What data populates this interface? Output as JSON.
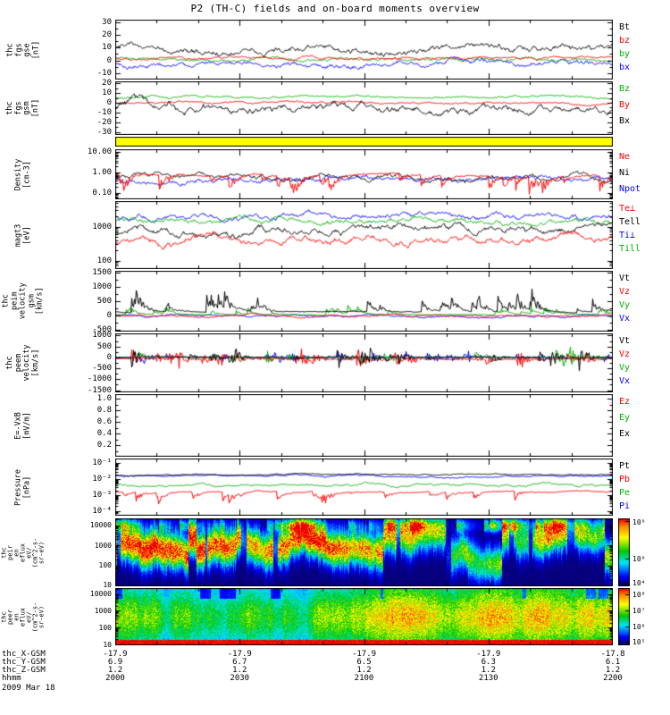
{
  "title": "P2 (TH-C) fields and on-board moments overview",
  "date_label": "2009 Mar 18",
  "colors": {
    "black": "#000000",
    "red": "#ff0000",
    "green": "#00b000",
    "blue": "#0000ff",
    "flag_yellow": "#ffff00"
  },
  "bottom_rows": [
    {
      "label": "thc_X-GSM",
      "values": [
        "-17.9",
        "-17.9",
        "-17.9",
        "-17.9",
        "-17.8"
      ]
    },
    {
      "label": "thc_Y-GSM",
      "values": [
        "6.9",
        "6.7",
        "6.5",
        "6.3",
        "6.1"
      ]
    },
    {
      "label": "thc_Z-GSM",
      "values": [
        "1.2",
        "1.2",
        "1.2",
        "1.2",
        "1.2"
      ]
    },
    {
      "label": "hhmm",
      "values": [
        "2000",
        "2030",
        "2100",
        "2130",
        "2200"
      ]
    },
    {
      "label": "2009 Mar 18",
      "values": []
    }
  ],
  "chart_data": {
    "type": "multi-panel time series and spectrograms",
    "x_axis": {
      "tick_labels": [
        "2000",
        "2030",
        "2100",
        "2130",
        "2200"
      ],
      "minor_every_minutes": 10,
      "span_minutes": 120
    },
    "panels": [
      {
        "id": "fgs_gse",
        "type": "line",
        "ylabel_lines": [
          "thc",
          "fgs",
          "gse",
          "[nT]"
        ],
        "scale": "linear",
        "yrange": [
          -15,
          32
        ],
        "yticks": [
          {
            "value": 30,
            "label": "30"
          },
          {
            "value": 20,
            "label": "20"
          },
          {
            "value": 10,
            "label": "10"
          },
          {
            "value": 0,
            "label": "0"
          },
          {
            "value": -10,
            "label": "-10"
          }
        ],
        "legend": [
          {
            "label": "Bt",
            "color": "#000000"
          },
          {
            "label": "bz",
            "color": "#ff0000"
          },
          {
            "label": "by",
            "color": "#00b000"
          },
          {
            "label": "bx",
            "color": "#0000ff"
          }
        ],
        "series": [
          {
            "name": "bx",
            "color": "#0000ff",
            "style": "smooth",
            "base": -2,
            "amp": 6,
            "seed": 101
          },
          {
            "name": "by",
            "color": "#00b000",
            "style": "smooth",
            "base": 1,
            "amp": 3,
            "seed": 102
          },
          {
            "name": "bz",
            "color": "#ff0000",
            "style": "smooth",
            "base": 2,
            "amp": 3,
            "seed": 103
          },
          {
            "name": "Bt",
            "color": "#000000",
            "style": "smooth_pos",
            "base": 9,
            "amp": 7,
            "seed": 104
          }
        ]
      },
      {
        "id": "fgs_gsm",
        "type": "line",
        "ylabel_lines": [
          "thc",
          "fgs",
          "gsm",
          "[nT]"
        ],
        "scale": "linear",
        "yrange": [
          -33,
          22
        ],
        "yticks": [
          {
            "value": 20,
            "label": "20"
          },
          {
            "value": 10,
            "label": "10"
          },
          {
            "value": 0,
            "label": "0"
          },
          {
            "value": -10,
            "label": "-10"
          },
          {
            "value": -20,
            "label": "-20"
          },
          {
            "value": -30,
            "label": "-30"
          }
        ],
        "legend": [
          {
            "label": "Bz",
            "color": "#00b000"
          },
          {
            "label": "By",
            "color": "#ff0000"
          },
          {
            "label": "Bx",
            "color": "#000000"
          }
        ],
        "series": [
          {
            "name": "By",
            "color": "#ff0000",
            "style": "smooth",
            "base": 0,
            "amp": 3,
            "seed": 201
          },
          {
            "name": "Bz",
            "color": "#00b000",
            "style": "smooth",
            "base": 6,
            "amp": 3,
            "seed": 202
          },
          {
            "name": "Bx",
            "color": "#000000",
            "style": "smooth",
            "base": -6,
            "amp": 11,
            "seed": 203
          }
        ]
      },
      {
        "id": "flag",
        "type": "flag",
        "color": "#ffff00"
      },
      {
        "id": "density",
        "type": "line",
        "ylabel_lines": [
          "Density",
          "[cm-3]"
        ],
        "scale": "log",
        "yrange_log": [
          -1.3,
          1.15
        ],
        "yticks": [
          {
            "value": 1,
            "label": "10.00"
          },
          {
            "value": 0,
            "label": "1.00"
          },
          {
            "value": -1,
            "label": "0.10"
          }
        ],
        "legend": [
          {
            "label": "Ne",
            "color": "#ff0000"
          },
          {
            "label": "Ni",
            "color": "#000000"
          },
          {
            "label": "Npot",
            "color": "#0000ff"
          }
        ],
        "series": [
          {
            "name": "Npot",
            "color": "#0000ff",
            "style": "smooth",
            "base": -0.3,
            "amp": 0.35,
            "seed": 301
          },
          {
            "name": "Ni",
            "color": "#000000",
            "style": "smooth",
            "base": -0.2,
            "amp": 0.35,
            "seed": 302
          },
          {
            "name": "Ne",
            "color": "#ff0000",
            "style": "spike_down",
            "base": -0.12,
            "amp": 1.1,
            "seed": 303
          }
        ]
      },
      {
        "id": "temps",
        "type": "line",
        "ylabel_lines": [
          "magt3",
          "[eV]"
        ],
        "scale": "log",
        "yrange_log": [
          1.75,
          3.75
        ],
        "yticks": [
          {
            "value": 3,
            "label": "1000"
          },
          {
            "value": 2,
            "label": "100"
          }
        ],
        "legend": [
          {
            "label": "Te⊥",
            "color": "#ff0000"
          },
          {
            "label": "Tell",
            "color": "#000000"
          },
          {
            "label": "Ti⊥",
            "color": "#0000ff"
          },
          {
            "label": "Till",
            "color": "#00b000"
          }
        ],
        "series": [
          {
            "name": "Ti⊥",
            "color": "#0000ff",
            "style": "smooth",
            "base": 3.3,
            "amp": 0.22,
            "seed": 401
          },
          {
            "name": "Till",
            "color": "#00b000",
            "style": "smooth",
            "base": 3.18,
            "amp": 0.22,
            "seed": 402
          },
          {
            "name": "Tell",
            "color": "#000000",
            "style": "smooth",
            "base": 2.85,
            "amp": 0.28,
            "seed": 403
          },
          {
            "name": "Te⊥",
            "color": "#ff0000",
            "style": "smooth",
            "base": 2.55,
            "amp": 0.28,
            "seed": 404
          }
        ]
      },
      {
        "id": "vel_ion",
        "type": "line",
        "ylabel_lines": [
          "thc",
          "peim",
          "velocity",
          "gsm",
          "[km/s]"
        ],
        "scale": "linear",
        "yrange": [
          -550,
          1550
        ],
        "yticks": [
          {
            "value": 1500,
            "label": "1500"
          },
          {
            "value": 1000,
            "label": "1000"
          },
          {
            "value": 500,
            "label": "500"
          },
          {
            "value": 0,
            "label": "0"
          },
          {
            "value": -500,
            "label": "-500"
          }
        ],
        "legend": [
          {
            "label": "Vt",
            "color": "#000000"
          },
          {
            "label": "Vz",
            "color": "#ff0000"
          },
          {
            "label": "Vy",
            "color": "#00b000"
          },
          {
            "label": "Vx",
            "color": "#0000ff"
          }
        ],
        "series": [
          {
            "name": "Vx",
            "color": "#0000ff",
            "style": "smooth",
            "base": -20,
            "amp": 90,
            "seed": 501
          },
          {
            "name": "Vy",
            "color": "#00b000",
            "style": "spike_up",
            "base": 30,
            "amp": 330,
            "seed": 502
          },
          {
            "name": "Vz",
            "color": "#ff0000",
            "style": "smooth",
            "base": 0,
            "amp": 90,
            "seed": 503
          },
          {
            "name": "Vt",
            "color": "#000000",
            "style": "spike_up",
            "base": 130,
            "amp": 850,
            "seed": 504
          }
        ]
      },
      {
        "id": "vel_ele",
        "type": "line",
        "ylabel_lines": [
          "thc",
          "peem",
          "velocity",
          "[km/s]"
        ],
        "scale": "linear",
        "yrange": [
          -1600,
          1100
        ],
        "yticks": [
          {
            "value": 1000,
            "label": "1000"
          },
          {
            "value": 500,
            "label": "500"
          },
          {
            "value": 0,
            "label": "0"
          },
          {
            "value": -500,
            "label": "-500"
          },
          {
            "value": -1000,
            "label": "-1000"
          },
          {
            "value": -1500,
            "label": "-1500"
          }
        ],
        "legend": [
          {
            "label": "Vt",
            "color": "#000000"
          },
          {
            "label": "Vz",
            "color": "#ff0000"
          },
          {
            "label": "Vy",
            "color": "#00b000"
          },
          {
            "label": "Vx",
            "color": "#0000ff"
          }
        ],
        "series": [
          {
            "name": "Vx",
            "color": "#0000ff",
            "style": "bipolar",
            "base": 0,
            "amp": 300,
            "seed": 601
          },
          {
            "name": "Vy",
            "color": "#00b000",
            "style": "bipolar",
            "base": 0,
            "amp": 480,
            "seed": 602
          },
          {
            "name": "Vz",
            "color": "#ff0000",
            "style": "bipolar",
            "base": -80,
            "amp": 520,
            "seed": 603
          },
          {
            "name": "Vt",
            "color": "#000000",
            "style": "bipolar",
            "base": 0,
            "amp": 720,
            "seed": 604
          }
        ]
      },
      {
        "id": "efield",
        "type": "line",
        "ylabel_lines": [
          "E=-VxB",
          "[mV/m]"
        ],
        "scale": "linear",
        "yrange": [
          0,
          1.08
        ],
        "yticks": [
          {
            "value": 1.0,
            "label": "1.0"
          },
          {
            "value": 0.8,
            "label": "0.8"
          },
          {
            "value": 0.6,
            "label": "0.6"
          },
          {
            "value": 0.4,
            "label": "0.4"
          },
          {
            "value": 0.2,
            "label": "0.2"
          }
        ],
        "legend": [
          {
            "label": "Ez",
            "color": "#ff0000"
          },
          {
            "label": "Ey",
            "color": "#00b000"
          },
          {
            "label": "Ex",
            "color": "#000000"
          }
        ],
        "series": []
      },
      {
        "id": "pressure",
        "type": "line",
        "ylabel_lines": [
          "Pressure",
          "[nPa]"
        ],
        "scale": "log",
        "yrange_log": [
          -4.3,
          -0.7
        ],
        "yticks": [
          {
            "value": -1,
            "label": "10⁻¹"
          },
          {
            "value": -2,
            "label": "10⁻²"
          },
          {
            "value": -3,
            "label": "10⁻³"
          },
          {
            "value": -4,
            "label": "10⁻⁴"
          }
        ],
        "legend": [
          {
            "label": "Pt",
            "color": "#000000"
          },
          {
            "label": "Pb",
            "color": "#ff0000"
          },
          {
            "label": "Pe",
            "color": "#00b000"
          },
          {
            "label": "Pi",
            "color": "#0000ff"
          }
        ],
        "series": [
          {
            "name": "Pb",
            "color": "#ff0000",
            "style": "spike_down",
            "base": -2.8,
            "amp": 0.9,
            "seed": 701
          },
          {
            "name": "Pe",
            "color": "#00b000",
            "style": "smooth",
            "base": -2.35,
            "amp": 0.22,
            "seed": 702
          },
          {
            "name": "Pi",
            "color": "#0000ff",
            "style": "smooth",
            "base": -1.8,
            "amp": 0.12,
            "seed": 703
          },
          {
            "name": "Pt",
            "color": "#000000",
            "style": "smooth",
            "base": -1.72,
            "amp": 0.1,
            "seed": 704
          }
        ]
      },
      {
        "id": "spec_ion",
        "type": "spectrogram",
        "species": "ion",
        "ylabel_lines": [
          "thc",
          "peir",
          "en",
          "eflux",
          "eV/",
          "(cm^2-s-",
          "sr-eV)"
        ],
        "scale": "log",
        "yrange_log": [
          0.95,
          4.35
        ],
        "yticks": [
          {
            "value": 4,
            "label": "10000"
          },
          {
            "value": 3,
            "label": "1000"
          },
          {
            "value": 2,
            "label": "100"
          },
          {
            "value": 1,
            "label": "10"
          }
        ],
        "colorbar": {
          "range_log": [
            3.8,
            9.2
          ],
          "ticks": [
            {
              "log": 9,
              "label": "10⁹"
            },
            {
              "log": 6,
              "label": "10⁶"
            },
            {
              "log": 4,
              "label": "10⁴"
            }
          ]
        },
        "seed": 801
      },
      {
        "id": "spec_ele",
        "type": "spectrogram",
        "species": "electron",
        "ylabel_lines": [
          "thc",
          "peer",
          "en",
          "eflux",
          "eV/",
          "(cm^2-s-",
          "sr-eV)"
        ],
        "scale": "log",
        "yrange_log": [
          0.95,
          4.35
        ],
        "yticks": [
          {
            "value": 4,
            "label": "10000"
          },
          {
            "value": 3,
            "label": "1000"
          },
          {
            "value": 2,
            "label": "100"
          },
          {
            "value": 1,
            "label": "10"
          }
        ],
        "colorbar": {
          "range_log": [
            4.8,
            8.4
          ],
          "ticks": [
            {
              "log": 8,
              "label": "10⁸"
            },
            {
              "log": 7,
              "label": "10⁷"
            },
            {
              "log": 6,
              "label": "10⁶"
            },
            {
              "log": 5,
              "label": "10⁵"
            }
          ]
        },
        "seed": 901
      }
    ]
  }
}
